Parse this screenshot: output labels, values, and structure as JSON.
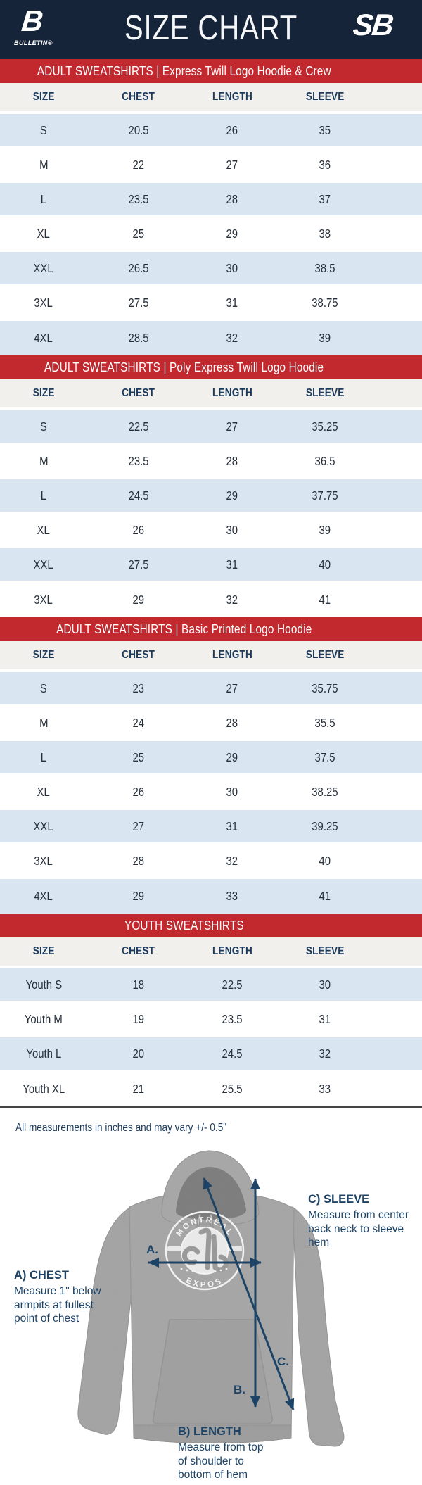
{
  "header": {
    "title": "SIZE CHART",
    "brand_left_letter": "B",
    "brand_left": "BULLETIN®",
    "brand_right": "SB"
  },
  "columns": [
    "SIZE",
    "CHEST",
    "LENGTH",
    "SLEEVE"
  ],
  "tables": [
    {
      "banner": "ADULT SWEATSHIRTS | Express Twill Logo Hoodie & Crew",
      "rows": [
        [
          "S",
          "20.5",
          "26",
          "35"
        ],
        [
          "M",
          "22",
          "27",
          "36"
        ],
        [
          "L",
          "23.5",
          "28",
          "37"
        ],
        [
          "XL",
          "25",
          "29",
          "38"
        ],
        [
          "XXL",
          "26.5",
          "30",
          "38.5"
        ],
        [
          "3XL",
          "27.5",
          "31",
          "38.75"
        ],
        [
          "4XL",
          "28.5",
          "32",
          "39"
        ]
      ]
    },
    {
      "banner": "ADULT SWEATSHIRTS | Poly Express Twill Logo Hoodie",
      "rows": [
        [
          "S",
          "22.5",
          "27",
          "35.25"
        ],
        [
          "M",
          "23.5",
          "28",
          "36.5"
        ],
        [
          "L",
          "24.5",
          "29",
          "37.75"
        ],
        [
          "XL",
          "26",
          "30",
          "39"
        ],
        [
          "XXL",
          "27.5",
          "31",
          "40"
        ],
        [
          "3XL",
          "29",
          "32",
          "41"
        ]
      ]
    },
    {
      "banner": "ADULT SWEATSHIRTS | Basic Printed Logo Hoodie",
      "rows": [
        [
          "S",
          "23",
          "27",
          "35.75"
        ],
        [
          "M",
          "24",
          "28",
          "35.5"
        ],
        [
          "L",
          "25",
          "29",
          "37.5"
        ],
        [
          "XL",
          "26",
          "30",
          "38.25"
        ],
        [
          "XXL",
          "27",
          "31",
          "39.25"
        ],
        [
          "3XL",
          "28",
          "32",
          "40"
        ],
        [
          "4XL",
          "29",
          "33",
          "41"
        ]
      ]
    },
    {
      "banner": "YOUTH SWEATSHIRTS",
      "rows": [
        [
          "Youth S",
          "18",
          "22.5",
          "30"
        ],
        [
          "Youth M",
          "19",
          "23.5",
          "31"
        ],
        [
          "Youth L",
          "20",
          "24.5",
          "32"
        ],
        [
          "Youth XL",
          "21",
          "25.5",
          "33"
        ]
      ]
    }
  ],
  "footnote": "All measurements in inches and may vary +/- 0.5\"",
  "diagram": {
    "logo_top": "MONTRÉAL",
    "logo_bottom": "EXPOS",
    "annotations": [
      {
        "key": "A.",
        "title": "A) CHEST",
        "lines": [
          "Measure 1\" below",
          "armpits at fullest",
          "point of chest"
        ]
      },
      {
        "key": "B.",
        "title": "B) LENGTH",
        "lines": [
          "Measure from top",
          "of shoulder to",
          "bottom of hem"
        ]
      },
      {
        "key": "C.",
        "title": "C) SLEEVE",
        "lines": [
          "Measure from center",
          "back neck to sleeve hem"
        ]
      }
    ]
  },
  "colors": {
    "navy": "#16243a",
    "banner_red": "#c2292f",
    "row_blue": "#d9e6f2",
    "header_band": "#f1f0ec",
    "header_text": "#1c3a5c",
    "cell_text": "#262f3a",
    "arrow": "#1d4467",
    "divider": "#454545",
    "hoodie_gray": "#a8a8a8"
  }
}
